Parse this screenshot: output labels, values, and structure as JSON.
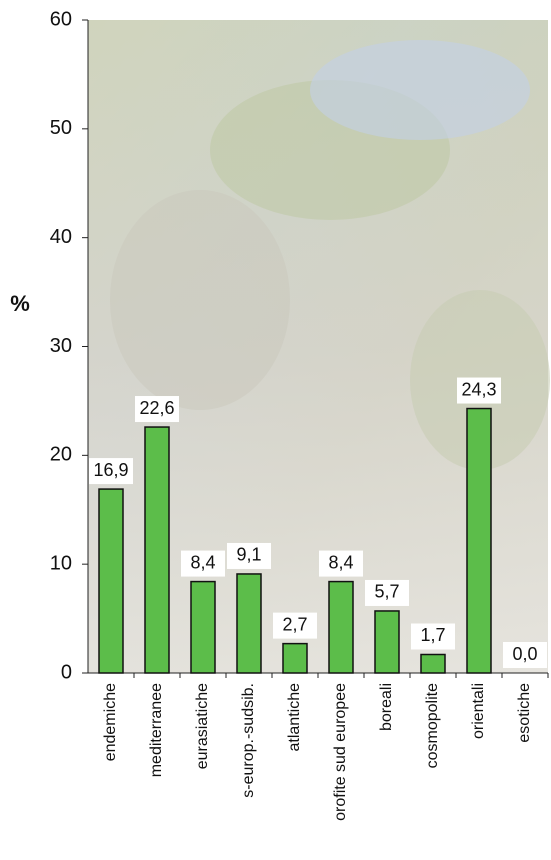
{
  "chart_data": {
    "type": "bar",
    "ylabel": "%",
    "categories": [
      "endemiche",
      "mediterranee",
      "eurasiatiche",
      "s-europ.-sudsib.",
      "atlantiche",
      "orofite sud europee",
      "boreali",
      "cosmopolite",
      "orientali",
      "esotiche"
    ],
    "values": [
      16.9,
      22.6,
      8.4,
      9.1,
      2.7,
      8.4,
      5.7,
      1.7,
      24.3,
      0
    ],
    "value_labels": [
      "16,9",
      "22,6",
      "8,4",
      "9,1",
      "2,7",
      "8,4",
      "5,7",
      "1,7",
      "24,3",
      "0,0"
    ],
    "color": "#5cbd4a",
    "ylim": [
      0,
      60
    ],
    "yticks": [
      0,
      10,
      20,
      30,
      40,
      50,
      60
    ],
    "grid": false
  }
}
